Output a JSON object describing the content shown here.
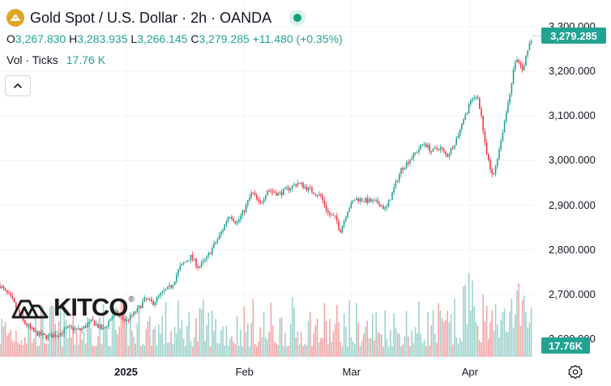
{
  "header": {
    "title": "Gold Spot / U.S. Dollar · 2h · OANDA",
    "symbol_icon": "gold-bars-icon",
    "live_icon": "market-open-dot-icon"
  },
  "ohlc": {
    "o_label": "O",
    "o_value": "3,267.830",
    "h_label": "H",
    "h_value": "3,283.935",
    "l_label": "L",
    "l_value": "3,266.145",
    "c_label": "C",
    "c_value": "3,279.285",
    "change": "+11.480 (+0.35%)"
  },
  "volume": {
    "label": "Vol · Ticks",
    "value": "17.76 K",
    "tag": "17.76K"
  },
  "price_tag": "3,279.285",
  "watermark": {
    "text": "KITCO",
    "reg": "®"
  },
  "colors": {
    "up": "#22a392",
    "down": "#f23645",
    "vol_up": "#9dd3cb",
    "vol_down": "#f5a5a6",
    "accent": "#e0a526"
  },
  "chart_data": {
    "type": "candlestick",
    "title": "Gold Spot / U.S. Dollar · 2h · OANDA",
    "ylim": [
      2560,
      3300
    ],
    "y_ticks": [
      "3,300.000",
      "3,200.000",
      "3,100.000",
      "3,000.000",
      "2,900.000",
      "2,800.000",
      "2,700.000",
      "2,600.000"
    ],
    "y_tick_values": [
      3300,
      3200,
      3100,
      3000,
      2900,
      2800,
      2700,
      2600
    ],
    "x_ticks": [
      "2025",
      "Feb",
      "Mar",
      "Apr"
    ],
    "x_tick_days": [
      33,
      64,
      92,
      123
    ],
    "x_range_days": [
      0,
      140
    ],
    "last_price": 3279.285,
    "series": [
      {
        "name": "Price",
        "path": [
          [
            0,
            2720
          ],
          [
            3,
            2690
          ],
          [
            6,
            2640
          ],
          [
            9,
            2615
          ],
          [
            12,
            2605
          ],
          [
            15,
            2610
          ],
          [
            18,
            2625
          ],
          [
            21,
            2620
          ],
          [
            24,
            2640
          ],
          [
            27,
            2620
          ],
          [
            30,
            2660
          ],
          [
            33,
            2640
          ],
          [
            36,
            2665
          ],
          [
            38,
            2690
          ],
          [
            40,
            2680
          ],
          [
            42,
            2700
          ],
          [
            45,
            2720
          ],
          [
            47,
            2760
          ],
          [
            50,
            2785
          ],
          [
            52,
            2760
          ],
          [
            54,
            2780
          ],
          [
            56,
            2810
          ],
          [
            58,
            2840
          ],
          [
            60,
            2880
          ],
          [
            62,
            2860
          ],
          [
            64,
            2890
          ],
          [
            66,
            2930
          ],
          [
            68,
            2900
          ],
          [
            70,
            2935
          ],
          [
            73,
            2925
          ],
          [
            76,
            2940
          ],
          [
            78,
            2950
          ],
          [
            81,
            2935
          ],
          [
            84,
            2920
          ],
          [
            86,
            2880
          ],
          [
            88,
            2870
          ],
          [
            89,
            2840
          ],
          [
            91,
            2890
          ],
          [
            93,
            2915
          ],
          [
            96,
            2910
          ],
          [
            99,
            2905
          ],
          [
            101,
            2890
          ],
          [
            103,
            2935
          ],
          [
            105,
            2980
          ],
          [
            108,
            3010
          ],
          [
            111,
            3040
          ],
          [
            113,
            3020
          ],
          [
            115,
            3030
          ],
          [
            117,
            3010
          ],
          [
            119,
            3040
          ],
          [
            121,
            3080
          ],
          [
            123,
            3130
          ],
          [
            125,
            3145
          ],
          [
            126,
            3100
          ],
          [
            127,
            3030
          ],
          [
            128,
            2990
          ],
          [
            129,
            2960
          ],
          [
            130,
            3000
          ],
          [
            131,
            3040
          ],
          [
            133,
            3130
          ],
          [
            135,
            3230
          ],
          [
            137,
            3200
          ],
          [
            138,
            3250
          ],
          [
            139,
            3270
          ],
          [
            139.5,
            3279.285
          ]
        ]
      },
      {
        "name": "Vol · Ticks",
        "unit": "ticks",
        "last": 17760,
        "max": 60000
      }
    ]
  }
}
